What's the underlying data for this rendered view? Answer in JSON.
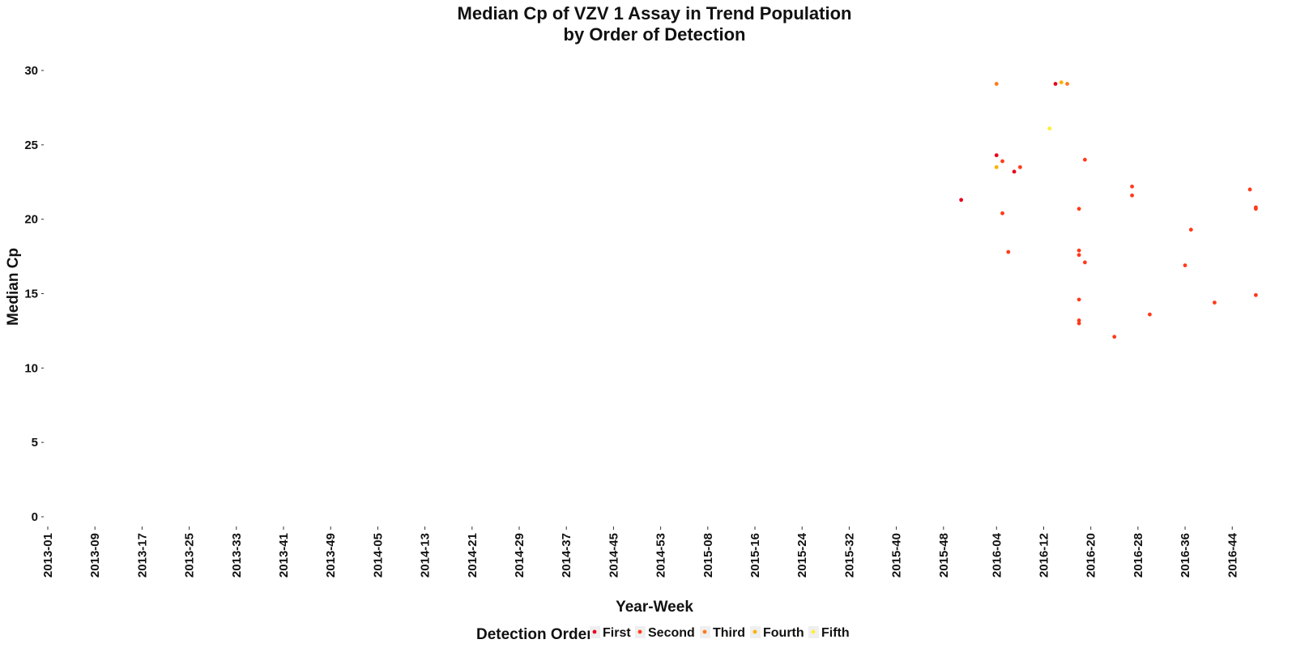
{
  "chart_data": {
    "type": "scatter",
    "title_line1": "Median Cp of VZV 1 Assay in Trend Population",
    "title_line2": "by Order of Detection",
    "xlabel": "Year-Week",
    "ylabel": "Median Cp",
    "ylim": [
      0,
      30
    ],
    "y_ticks": [
      "0",
      "5",
      "10",
      "15",
      "20",
      "25",
      "30"
    ],
    "x_weeks": [
      "2013-01",
      "2013-09",
      "2013-17",
      "2013-25",
      "2013-33",
      "2013-41",
      "2013-49",
      "2014-05",
      "2014-13",
      "2014-21",
      "2014-29",
      "2014-37",
      "2014-45",
      "2014-53",
      "2015-08",
      "2015-16",
      "2015-24",
      "2015-32",
      "2015-40",
      "2015-48",
      "2016-04",
      "2016-12",
      "2016-20",
      "2016-28",
      "2016-36",
      "2016-44"
    ],
    "grid": false,
    "legend": {
      "title": "Detection Order",
      "position": "bottom",
      "entries": [
        "First",
        "Second",
        "Third",
        "Fourth",
        "Fifth"
      ]
    },
    "series": [
      {
        "name": "First",
        "color": "#e8001c",
        "points": [
          {
            "x": "2015-51",
            "y": 21.3
          },
          {
            "x": "2016-04",
            "y": 24.3
          },
          {
            "x": "2016-07",
            "y": 23.2
          },
          {
            "x": "2016-14",
            "y": 29.1
          }
        ]
      },
      {
        "name": "Second",
        "color": "#ff3a1a",
        "points": [
          {
            "x": "2016-05",
            "y": 20.4
          },
          {
            "x": "2016-05",
            "y": 23.9
          },
          {
            "x": "2016-06",
            "y": 17.8
          },
          {
            "x": "2016-08",
            "y": 23.5
          },
          {
            "x": "2016-18",
            "y": 20.7
          },
          {
            "x": "2016-18",
            "y": 17.9
          },
          {
            "x": "2016-18",
            "y": 17.6
          },
          {
            "x": "2016-18",
            "y": 14.6
          },
          {
            "x": "2016-18",
            "y": 13.2
          },
          {
            "x": "2016-18",
            "y": 13.0
          },
          {
            "x": "2016-19",
            "y": 24.0
          },
          {
            "x": "2016-19",
            "y": 17.1
          },
          {
            "x": "2016-24",
            "y": 12.1
          },
          {
            "x": "2016-27",
            "y": 22.2
          },
          {
            "x": "2016-27",
            "y": 21.6
          },
          {
            "x": "2016-30",
            "y": 13.6
          },
          {
            "x": "2016-36",
            "y": 16.9
          },
          {
            "x": "2016-37",
            "y": 19.3
          },
          {
            "x": "2016-41",
            "y": 14.4
          },
          {
            "x": "2016-47",
            "y": 22.0
          },
          {
            "x": "2016-48",
            "y": 20.8
          },
          {
            "x": "2016-48",
            "y": 20.7
          },
          {
            "x": "2016-48",
            "y": 14.9
          }
        ]
      },
      {
        "name": "Third",
        "color": "#ff7a1a",
        "points": [
          {
            "x": "2016-04",
            "y": 29.1
          },
          {
            "x": "2016-16",
            "y": 29.1
          }
        ]
      },
      {
        "name": "Fourth",
        "color": "#ffb000",
        "points": [
          {
            "x": "2016-04",
            "y": 23.5
          },
          {
            "x": "2016-15",
            "y": 29.2
          }
        ]
      },
      {
        "name": "Fifth",
        "color": "#ffee33",
        "points": [
          {
            "x": "2016-13",
            "y": 26.1
          }
        ]
      }
    ]
  }
}
